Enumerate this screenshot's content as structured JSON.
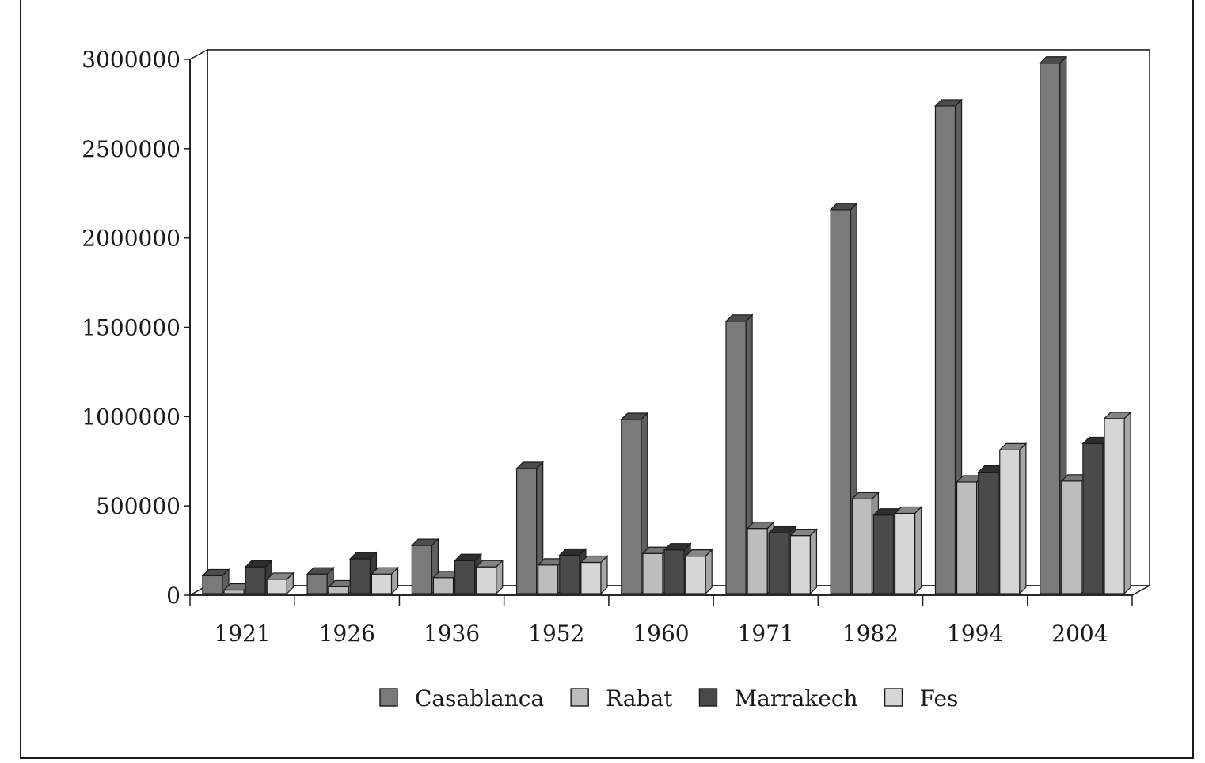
{
  "chart_data": {
    "type": "bar",
    "categories": [
      "1921",
      "1926",
      "1936",
      "1952",
      "1960",
      "1971",
      "1982",
      "1994",
      "2004"
    ],
    "series": [
      {
        "name": "Casablanca",
        "color": "#7a7a7a",
        "values": [
          100000,
          110000,
          270000,
          700000,
          975000,
          1525000,
          2150000,
          2730000,
          2970000
        ]
      },
      {
        "name": "Rabat",
        "color": "#bdbdbd",
        "values": [
          20000,
          38000,
          90000,
          160000,
          225000,
          365000,
          530000,
          625000,
          630000
        ]
      },
      {
        "name": "Marrakech",
        "color": "#4a4a4a",
        "values": [
          150000,
          195000,
          185000,
          215000,
          245000,
          340000,
          440000,
          680000,
          840000
        ]
      },
      {
        "name": "Fes",
        "color": "#d6d6d6",
        "values": [
          80000,
          110000,
          150000,
          175000,
          210000,
          325000,
          450000,
          805000,
          980000
        ]
      }
    ],
    "yticks": [
      "0",
      "500000",
      "1000000",
      "1500000",
      "2000000",
      "2500000",
      "3000000"
    ],
    "ylim": [
      0,
      3000000
    ],
    "grid": true,
    "legend": "bottom",
    "title": "",
    "xlabel": "",
    "ylabel": ""
  }
}
